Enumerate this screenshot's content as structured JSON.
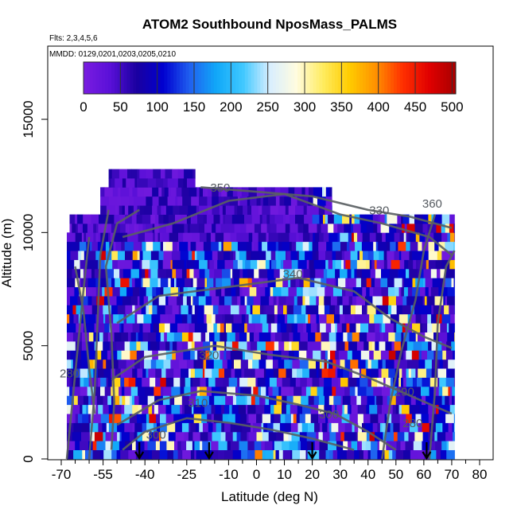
{
  "chart_data": {
    "type": "heatmap",
    "title": "ATOM2 Southbound NposMass_PALMS",
    "subtitle_flights": "Flts: 2,3,4,5,6",
    "subtitle_dates": "MMDD: 0129,0201,0203,0205,0210",
    "xlabel": "Latitude (deg N)",
    "ylabel": "Altitude (m)",
    "xlim": [
      -70,
      85
    ],
    "ylim": [
      0,
      17500
    ],
    "x_ticks": [
      "-70",
      "-55",
      "-40",
      "-25",
      "-10",
      "0",
      "10",
      "20",
      "30",
      "40",
      "50",
      "60",
      "70",
      "80"
    ],
    "x_tick_values": [
      -70,
      -55,
      -40,
      -25,
      -10,
      0,
      10,
      20,
      30,
      40,
      50,
      60,
      70,
      80
    ],
    "x_minor_ticks": [
      -65,
      -60,
      -50,
      -45,
      -35,
      -30,
      -20,
      -15,
      -5,
      5,
      15,
      25,
      35,
      45,
      55,
      65,
      75
    ],
    "y_ticks": [
      "0",
      "5000",
      "10000",
      "15000"
    ],
    "y_tick_values": [
      0,
      5000,
      10000,
      15000
    ],
    "colorbar": {
      "min": 0,
      "max": 505,
      "ticks": [
        "0",
        "50",
        "100",
        "150",
        "200",
        "250",
        "300",
        "350",
        "400",
        "450",
        "500"
      ],
      "tick_values": [
        0,
        50,
        100,
        150,
        200,
        250,
        300,
        350,
        400,
        450,
        500
      ],
      "colors": [
        "#7a1de0",
        "#5a10d8",
        "#1a00a0",
        "#0000d0",
        "#2060f0",
        "#10a8f8",
        "#40c8ff",
        "#d8eeff",
        "#fffce0",
        "#ffec60",
        "#ffcc00",
        "#ff9000",
        "#ff3000",
        "#e00000",
        "#a80000"
      ]
    },
    "contours": [
      {
        "label": "280",
        "lat": -67,
        "alt": 3600
      },
      {
        "label": "280",
        "lat": 56,
        "alt": 1400
      },
      {
        "label": "290",
        "lat": 53,
        "alt": 2800
      },
      {
        "label": "300",
        "lat": -36,
        "alt": 900
      },
      {
        "label": "300",
        "lat": 26,
        "alt": 1800
      },
      {
        "label": "310",
        "lat": -21,
        "alt": 2300
      },
      {
        "label": "320",
        "lat": -17,
        "alt": 4400
      },
      {
        "label": "330",
        "lat": 44,
        "alt": 10800
      },
      {
        "label": "340",
        "lat": 13,
        "alt": 8000
      },
      {
        "label": "350",
        "lat": -13,
        "alt": 11800
      },
      {
        "label": "360",
        "lat": 63,
        "alt": 11100
      }
    ],
    "flight_markers_lat": [
      -42,
      -17,
      20,
      61
    ],
    "data_extent": {
      "lat": [
        -68,
        71
      ],
      "alt": [
        0,
        12500
      ]
    }
  }
}
